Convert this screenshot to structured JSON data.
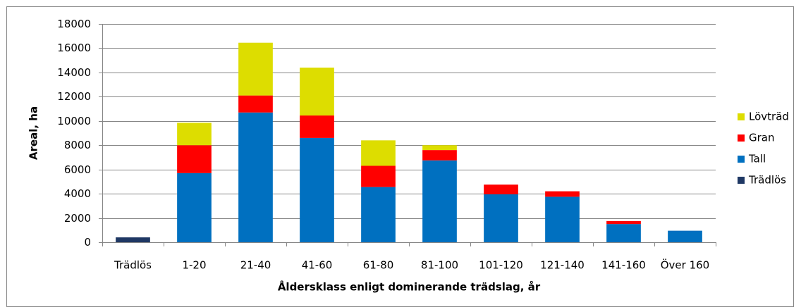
{
  "chart_data": {
    "type": "stacked_bar",
    "x_label": "Åldersklass enligt dominerande trädslag, år",
    "y_label": "Areal, ha",
    "categories": [
      "Trädlös",
      "1-20",
      "21-40",
      "41-60",
      "61-80",
      "81-100",
      "101-120",
      "121-140",
      "141-160",
      "Över 160"
    ],
    "series": [
      {
        "name": "Trädlös",
        "color": "#1f3864",
        "values": [
          400,
          0,
          0,
          0,
          0,
          0,
          0,
          0,
          0,
          0
        ]
      },
      {
        "name": "Tall",
        "color": "#0070c0",
        "values": [
          0,
          5700,
          10700,
          8600,
          4550,
          6750,
          3950,
          3750,
          1500,
          950
        ]
      },
      {
        "name": "Gran",
        "color": "#ff0000",
        "values": [
          0,
          2300,
          1400,
          1850,
          1750,
          850,
          800,
          450,
          250,
          0
        ]
      },
      {
        "name": "Lövträd",
        "color": "#dddd00",
        "values": [
          0,
          1850,
          4350,
          3950,
          2100,
          400,
          0,
          0,
          0,
          0
        ]
      }
    ],
    "ylim": [
      0,
      18000
    ],
    "yticks": [
      0,
      2000,
      4000,
      6000,
      8000,
      10000,
      12000,
      14000,
      16000,
      18000
    ],
    "grid": true,
    "legend": "right"
  }
}
